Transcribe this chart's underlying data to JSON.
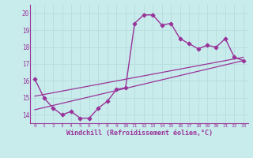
{
  "xlabel": "Windchill (Refroidissement éolien,°C)",
  "bg_color": "#c8ecec",
  "line_color": "#993399",
  "grid_color": "#b8dede",
  "axis_color": "#993399",
  "xlim": [
    -0.5,
    23.5
  ],
  "ylim": [
    13.5,
    20.5
  ],
  "xticks": [
    0,
    1,
    2,
    3,
    4,
    5,
    6,
    7,
    8,
    9,
    10,
    11,
    12,
    13,
    14,
    15,
    16,
    17,
    18,
    19,
    20,
    21,
    22,
    23
  ],
  "yticks": [
    14,
    15,
    16,
    17,
    18,
    19,
    20
  ],
  "line1_x": [
    0,
    1,
    2,
    3,
    4,
    5,
    6,
    7,
    8,
    9,
    10,
    11,
    12,
    13,
    14,
    15,
    16,
    17,
    18,
    19,
    20,
    21,
    22,
    23
  ],
  "line1_y": [
    16.1,
    15.0,
    14.4,
    14.0,
    14.2,
    13.8,
    13.8,
    14.4,
    14.8,
    15.5,
    15.6,
    19.4,
    19.9,
    19.9,
    19.3,
    19.4,
    18.5,
    18.2,
    17.9,
    18.1,
    18.0,
    18.5,
    17.4,
    17.2
  ],
  "line2_x": [
    0,
    23
  ],
  "line2_y": [
    14.3,
    17.2
  ],
  "line3_x": [
    0,
    23
  ],
  "line3_y": [
    15.1,
    17.4
  ]
}
